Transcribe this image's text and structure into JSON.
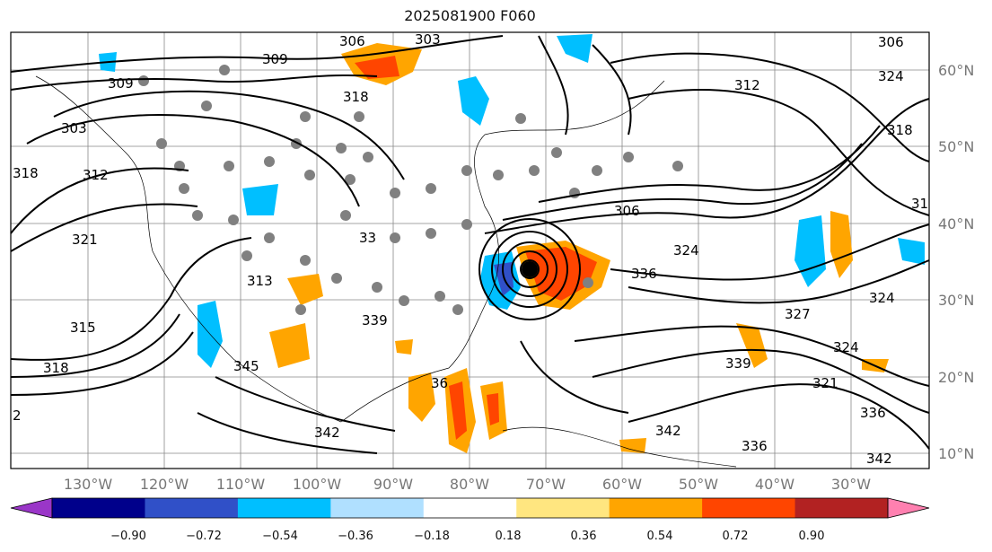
{
  "title": "2025081900 F060",
  "map": {
    "lon_labels": [
      "130°W",
      "120°W",
      "110°W",
      "100°W",
      "90°W",
      "80°W",
      "70°W",
      "60°W",
      "50°W",
      "40°W",
      "30°W"
    ],
    "lat_labels": [
      "60°N",
      "50°N",
      "40°N",
      "30°N",
      "20°N",
      "10°N"
    ],
    "contour_labels": [
      {
        "text": "306"
      },
      {
        "text": "303"
      },
      {
        "text": "309"
      },
      {
        "text": "309"
      },
      {
        "text": "318"
      },
      {
        "text": "303"
      },
      {
        "text": "312"
      },
      {
        "text": "318"
      },
      {
        "text": "321"
      },
      {
        "text": "315"
      },
      {
        "text": "318"
      },
      {
        "text": "2"
      },
      {
        "text": "342"
      },
      {
        "text": "345"
      },
      {
        "text": "339"
      },
      {
        "text": "306"
      },
      {
        "text": "324"
      },
      {
        "text": "336"
      },
      {
        "text": "312"
      },
      {
        "text": "324"
      },
      {
        "text": "324"
      },
      {
        "text": "327"
      },
      {
        "text": "321"
      },
      {
        "text": "339"
      },
      {
        "text": "342"
      },
      {
        "text": "336"
      },
      {
        "text": "336"
      },
      {
        "text": "342"
      },
      {
        "text": "306"
      },
      {
        "text": "318"
      },
      {
        "text": "31"
      },
      {
        "text": "33"
      },
      {
        "text": "313"
      },
      {
        "text": "324"
      },
      {
        "text": "36"
      }
    ]
  },
  "colorbar": {
    "tick_labels": [
      "−0.90",
      "−0.72",
      "−0.54",
      "−0.36",
      "−0.18",
      "0.18",
      "0.36",
      "0.54",
      "0.72",
      "0.90"
    ],
    "colors": [
      "#9a36c8",
      "#00008b",
      "#3050c8",
      "#00bfff",
      "#b0e0ff",
      "#ffffff",
      "#ffe680",
      "#ffa500",
      "#ff4500",
      "#b22222",
      "#ff80b0"
    ]
  }
}
